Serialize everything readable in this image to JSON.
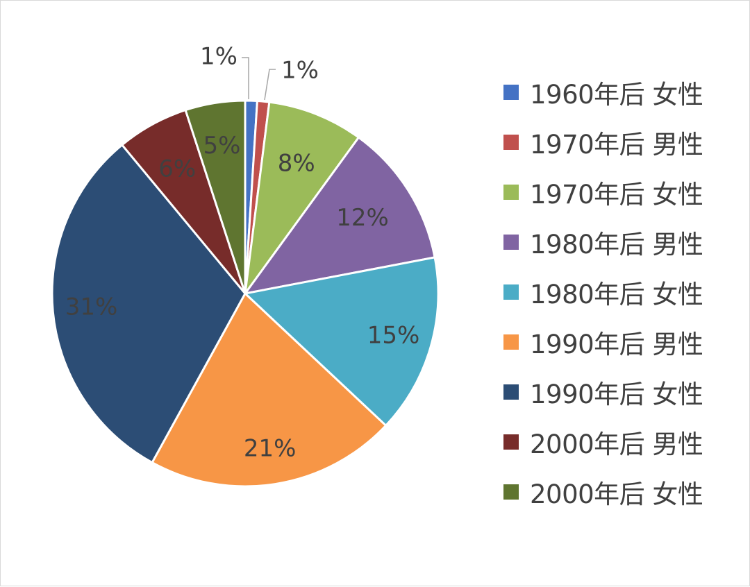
{
  "chart_data": {
    "type": "pie",
    "title": "",
    "categories": [
      "1960年后 女性",
      "1970年后 男性",
      "1970年后 女性",
      "1980年后 男性",
      "1980年后 女性",
      "1990年后 男性",
      "1990年后 女性",
      "2000年后 男性",
      "2000年后 女性"
    ],
    "values": [
      1,
      1,
      8,
      12,
      15,
      21,
      31,
      6,
      5
    ],
    "labels": [
      "1%",
      "1%",
      "8%",
      "12%",
      "15%",
      "21%",
      "31%",
      "6%",
      "5%"
    ],
    "colors": [
      "#4472c4",
      "#c0504d",
      "#9bbb59",
      "#8064a2",
      "#4bacc6",
      "#f79646",
      "#2c4d75",
      "#772c2a",
      "#5f7530"
    ],
    "legend_position": "right"
  }
}
